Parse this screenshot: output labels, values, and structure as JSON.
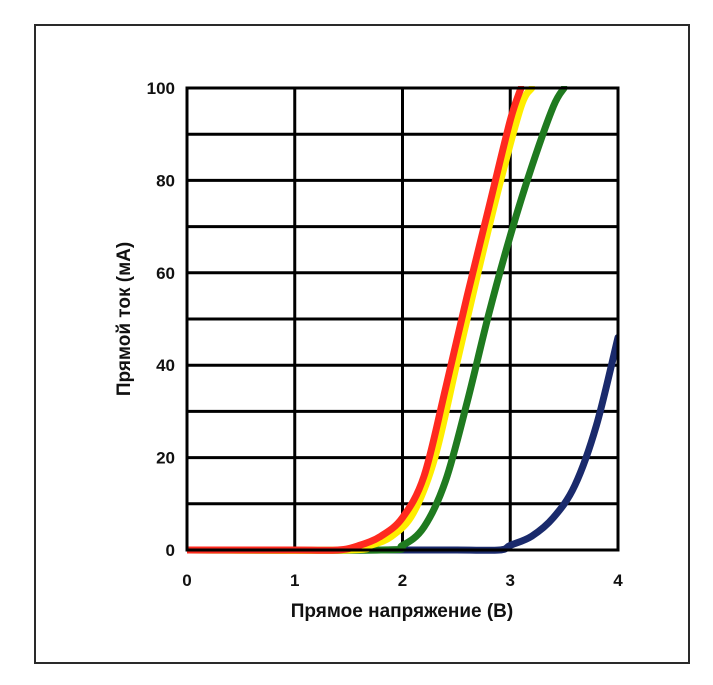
{
  "chart_data": {
    "type": "line",
    "xlabel": "Прямое напряжение (В)",
    "ylabel": "Прямой ток (мА)",
    "xlim": [
      0,
      4
    ],
    "ylim": [
      0,
      100
    ],
    "x_ticks": [
      "0",
      "1",
      "2",
      "3",
      "4"
    ],
    "y_ticks": [
      "0",
      "20",
      "40",
      "60",
      "80",
      "100"
    ],
    "grid": true,
    "series": [
      {
        "color": "#ff2a1f",
        "x": [
          0,
          1.0,
          1.4,
          1.6,
          1.8,
          2.0,
          2.2,
          2.4,
          2.6,
          2.8,
          3.0,
          3.1
        ],
        "y": [
          0,
          0,
          0,
          1,
          3,
          7,
          16,
          35,
          55,
          74,
          93,
          100
        ]
      },
      {
        "color": "#ffee00",
        "x": [
          0,
          1.5,
          1.7,
          1.9,
          2.1,
          2.3,
          2.5,
          2.7,
          2.9,
          3.1,
          3.2
        ],
        "y": [
          0,
          0,
          1,
          3,
          8,
          20,
          40,
          60,
          79,
          96,
          100
        ]
      },
      {
        "color": "#1f7a1f",
        "x": [
          0,
          1.8,
          2.0,
          2.2,
          2.4,
          2.6,
          2.8,
          3.0,
          3.2,
          3.4,
          3.5
        ],
        "y": [
          0,
          0,
          1,
          5,
          15,
          32,
          51,
          68,
          83,
          96,
          100
        ]
      },
      {
        "color": "#1a2a6c",
        "x": [
          1.8,
          2.5,
          2.9,
          3.0,
          3.2,
          3.4,
          3.6,
          3.8,
          4.0
        ],
        "y": [
          0,
          0,
          0,
          1,
          3,
          7,
          14,
          27,
          46
        ]
      }
    ]
  }
}
